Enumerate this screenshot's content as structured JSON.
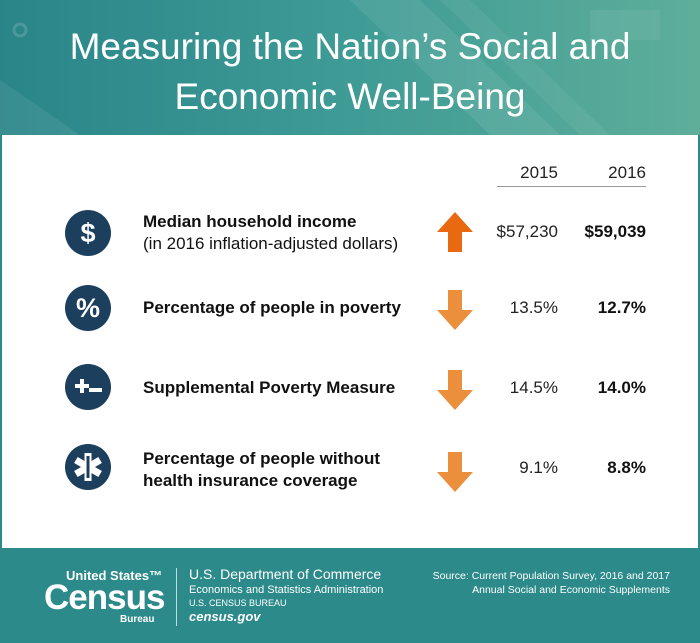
{
  "header": {
    "title": "Measuring the Nation’s Social and Economic Well-Being"
  },
  "table": {
    "columns": [
      "2015",
      "2016"
    ],
    "rows": [
      {
        "icon": "$",
        "label": "Median household income",
        "sublabel": "(in 2016 inflation-adjusted dollars)",
        "values": [
          "$57,230",
          "$59,039"
        ]
      },
      {
        "icon": "%",
        "label": "Percentage of people in poverty",
        "values": [
          "13.5%",
          "12.7%"
        ]
      },
      {
        "label": "Supplemental Poverty Measure",
        "values": [
          "14.5%",
          "14.0%"
        ]
      },
      {
        "label": "Percentage of people without health insurance coverage",
        "values": [
          "9.1%",
          "8.8%"
        ]
      }
    ]
  },
  "footer": {
    "logo": {
      "top": "United States™",
      "main": "Census",
      "bottom": "Bureau"
    },
    "agency": [
      "U.S. Department of Commerce",
      "Economics and Statistics Administration",
      "U.S. CENSUS BUREAU",
      "census.gov"
    ],
    "source": [
      "Source: Current Population Survey, 2016 and 2017",
      "Annual Social and Economic Supplements"
    ]
  }
}
